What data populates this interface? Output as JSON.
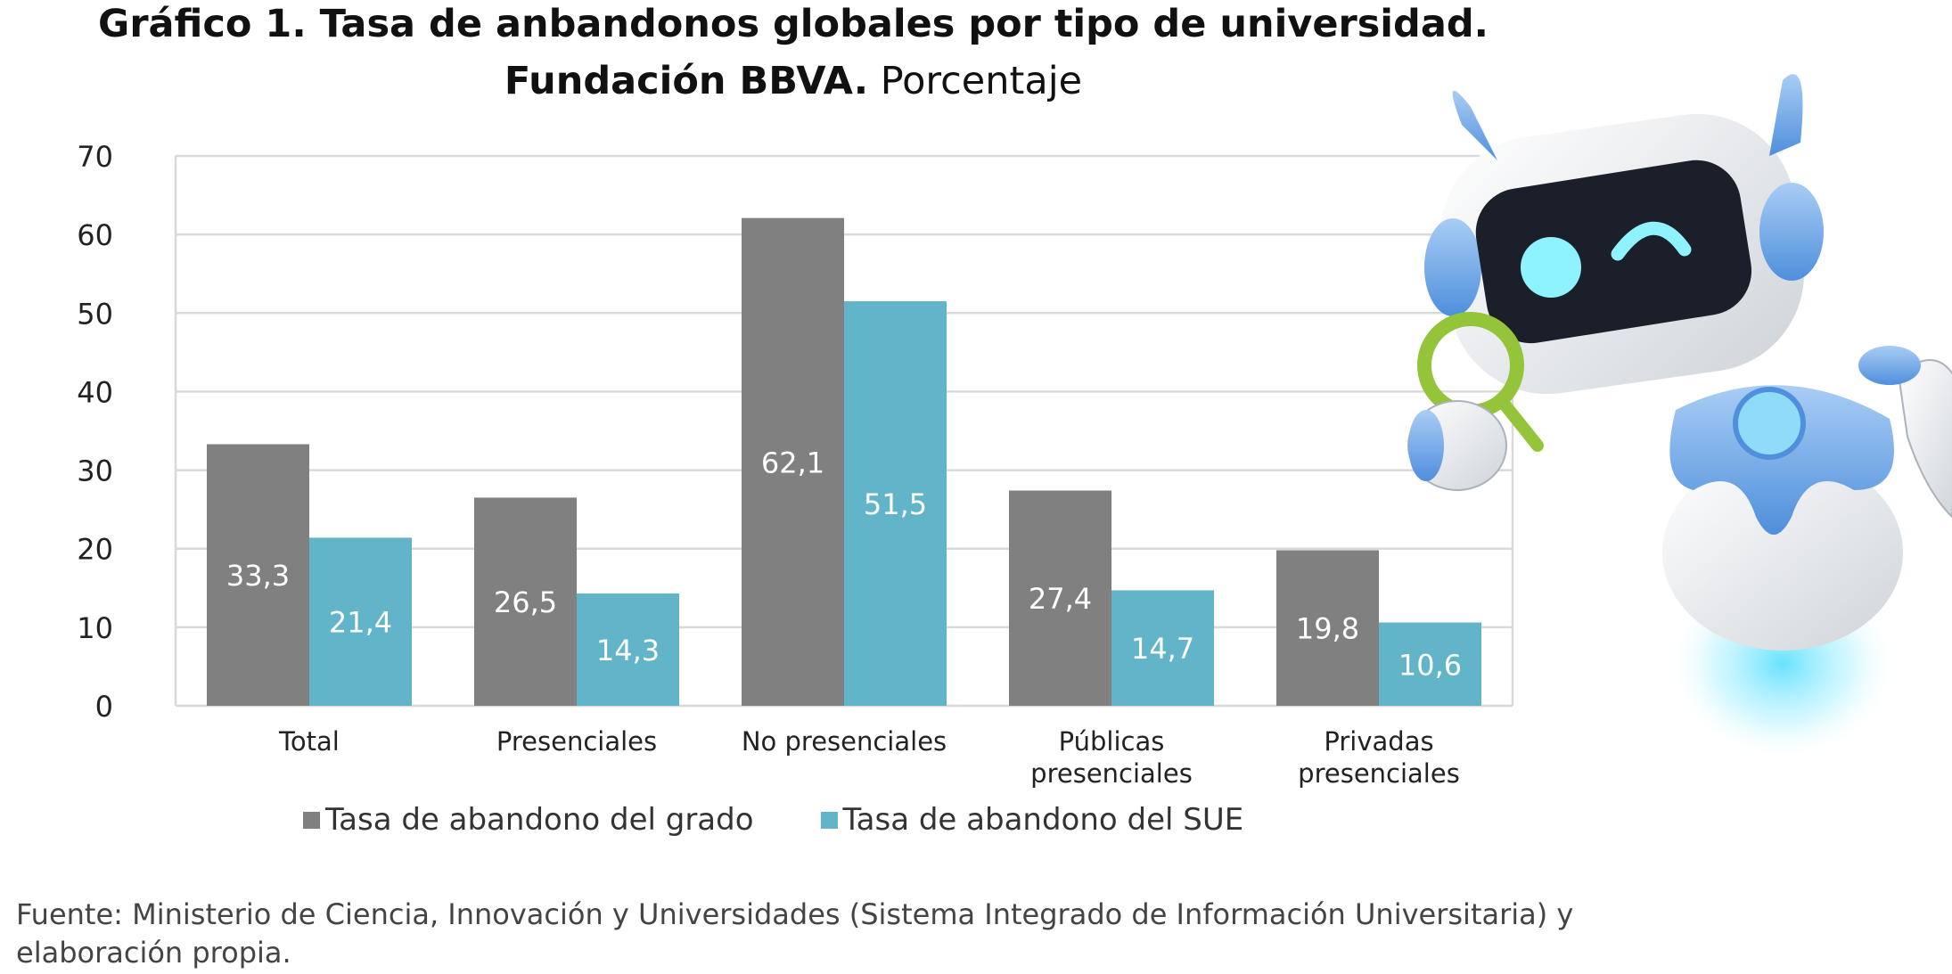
{
  "title": {
    "line1": "Gráfico 1. Tasa de anbandonos globales por tipo de universidad.",
    "line2_bold": "Fundación BBVA.",
    "line2_rest": "Porcentaje"
  },
  "source_note": "Fuente: Ministerio de Ciencia, Innovación y Universidades (Sistema Integrado de Información Universitaria) y elaboración propia.",
  "colors": {
    "grado": "#808080",
    "sue": "#62b5c9",
    "grid": "#d9d9d9"
  },
  "chart_data": {
    "type": "bar",
    "categories": [
      [
        "Total"
      ],
      [
        "Presenciales"
      ],
      [
        "No presenciales"
      ],
      [
        "Públicas",
        "presenciales"
      ],
      [
        "Privadas",
        "presenciales"
      ]
    ],
    "series": [
      {
        "name": "Tasa de abandono del grado",
        "values": [
          33.3,
          26.5,
          62.1,
          27.4,
          19.8
        ],
        "labels": [
          "33,3",
          "26,5",
          "62,1",
          "27,4",
          "19,8"
        ]
      },
      {
        "name": "Tasa de abandono del SUE",
        "values": [
          21.4,
          14.3,
          51.5,
          14.7,
          10.6
        ],
        "labels": [
          "21,4",
          "14,3",
          "51,5",
          "14,7",
          "10,6"
        ]
      }
    ],
    "ylim": [
      0,
      70
    ],
    "yticks": [
      "0",
      "10",
      "20",
      "30",
      "40",
      "50",
      "60",
      "70"
    ],
    "grid": true,
    "legend_position": "bottom"
  }
}
